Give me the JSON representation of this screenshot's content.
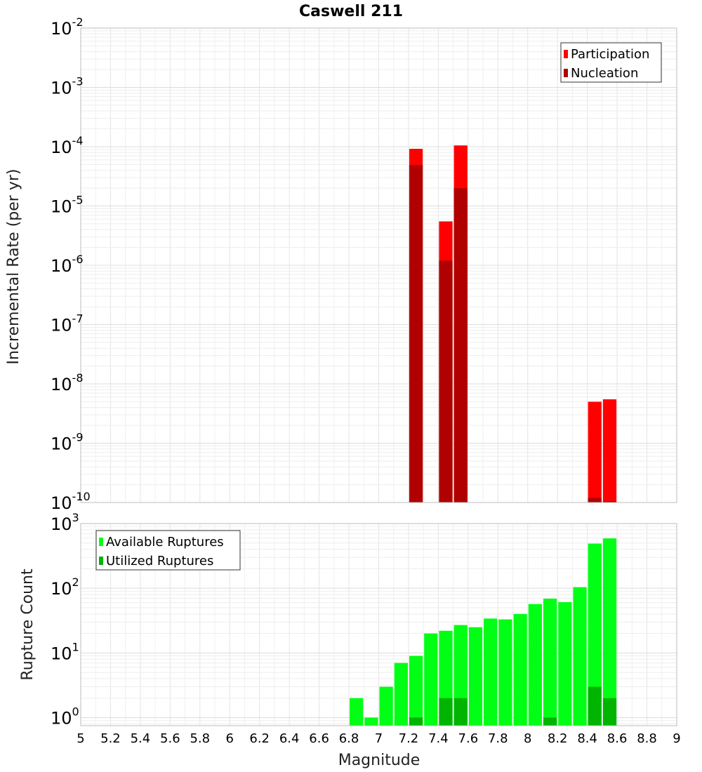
{
  "title": "Caswell 211",
  "xlabel": "Magnitude",
  "x_ticks": [
    "5",
    "5.2",
    "5.4",
    "5.6",
    "5.8",
    "6",
    "6.2",
    "6.4",
    "6.6",
    "6.8",
    "7",
    "7.2",
    "7.4",
    "7.6",
    "7.8",
    "8",
    "8.2",
    "8.4",
    "8.6",
    "8.8",
    "9"
  ],
  "chart_data": [
    {
      "type": "bar",
      "ylabel": "Incremental Rate (per yr)",
      "y_scale": "log",
      "ylim": [
        1e-10,
        0.01
      ],
      "xlim": [
        5,
        9
      ],
      "bin_width": 0.1,
      "grid": true,
      "legend_position": "top-right",
      "y_tick_exponents": [
        "-2",
        "-3",
        "-4",
        "-5",
        "-6",
        "-7",
        "-8",
        "-9",
        "-10"
      ],
      "series": [
        {
          "name": "Participation",
          "color": "#ff0000",
          "points": [
            {
              "x": 7.25,
              "y": 9.2e-05
            },
            {
              "x": 7.45,
              "y": 5.5e-06
            },
            {
              "x": 7.55,
              "y": 0.000105
            },
            {
              "x": 8.45,
              "y": 5e-09
            },
            {
              "x": 8.55,
              "y": 5.5e-09
            }
          ]
        },
        {
          "name": "Nucleation",
          "color": "#b00000",
          "points": [
            {
              "x": 7.25,
              "y": 4.9e-05
            },
            {
              "x": 7.45,
              "y": 1.2e-06
            },
            {
              "x": 7.55,
              "y": 2e-05
            },
            {
              "x": 8.45,
              "y": 1.2e-10
            },
            {
              "x": 8.55,
              "y": 1.05e-10
            }
          ]
        }
      ]
    },
    {
      "type": "bar",
      "ylabel": "Rupture Count",
      "y_scale": "log",
      "ylim": [
        0.75,
        1000
      ],
      "xlim": [
        5,
        9
      ],
      "bin_width": 0.1,
      "grid": true,
      "legend_position": "top-left",
      "y_tick_exponents": [
        "3",
        "2",
        "1",
        "0"
      ],
      "series": [
        {
          "name": "Available Ruptures",
          "color": "#00ff14",
          "points": [
            {
              "x": 6.85,
              "y": 2
            },
            {
              "x": 6.95,
              "y": 1
            },
            {
              "x": 7.05,
              "y": 3
            },
            {
              "x": 7.15,
              "y": 7
            },
            {
              "x": 7.25,
              "y": 9
            },
            {
              "x": 7.35,
              "y": 20
            },
            {
              "x": 7.45,
              "y": 22
            },
            {
              "x": 7.55,
              "y": 27
            },
            {
              "x": 7.65,
              "y": 25
            },
            {
              "x": 7.75,
              "y": 34
            },
            {
              "x": 7.85,
              "y": 33
            },
            {
              "x": 7.95,
              "y": 40
            },
            {
              "x": 8.05,
              "y": 57
            },
            {
              "x": 8.15,
              "y": 69
            },
            {
              "x": 8.25,
              "y": 61
            },
            {
              "x": 8.35,
              "y": 104
            },
            {
              "x": 8.45,
              "y": 490
            },
            {
              "x": 8.55,
              "y": 590
            }
          ]
        },
        {
          "name": "Utilized Ruptures",
          "color": "#00b400",
          "points": [
            {
              "x": 7.25,
              "y": 1
            },
            {
              "x": 7.45,
              "y": 2
            },
            {
              "x": 7.55,
              "y": 2
            },
            {
              "x": 8.15,
              "y": 1
            },
            {
              "x": 8.45,
              "y": 3
            },
            {
              "x": 8.55,
              "y": 2
            }
          ]
        }
      ]
    }
  ]
}
